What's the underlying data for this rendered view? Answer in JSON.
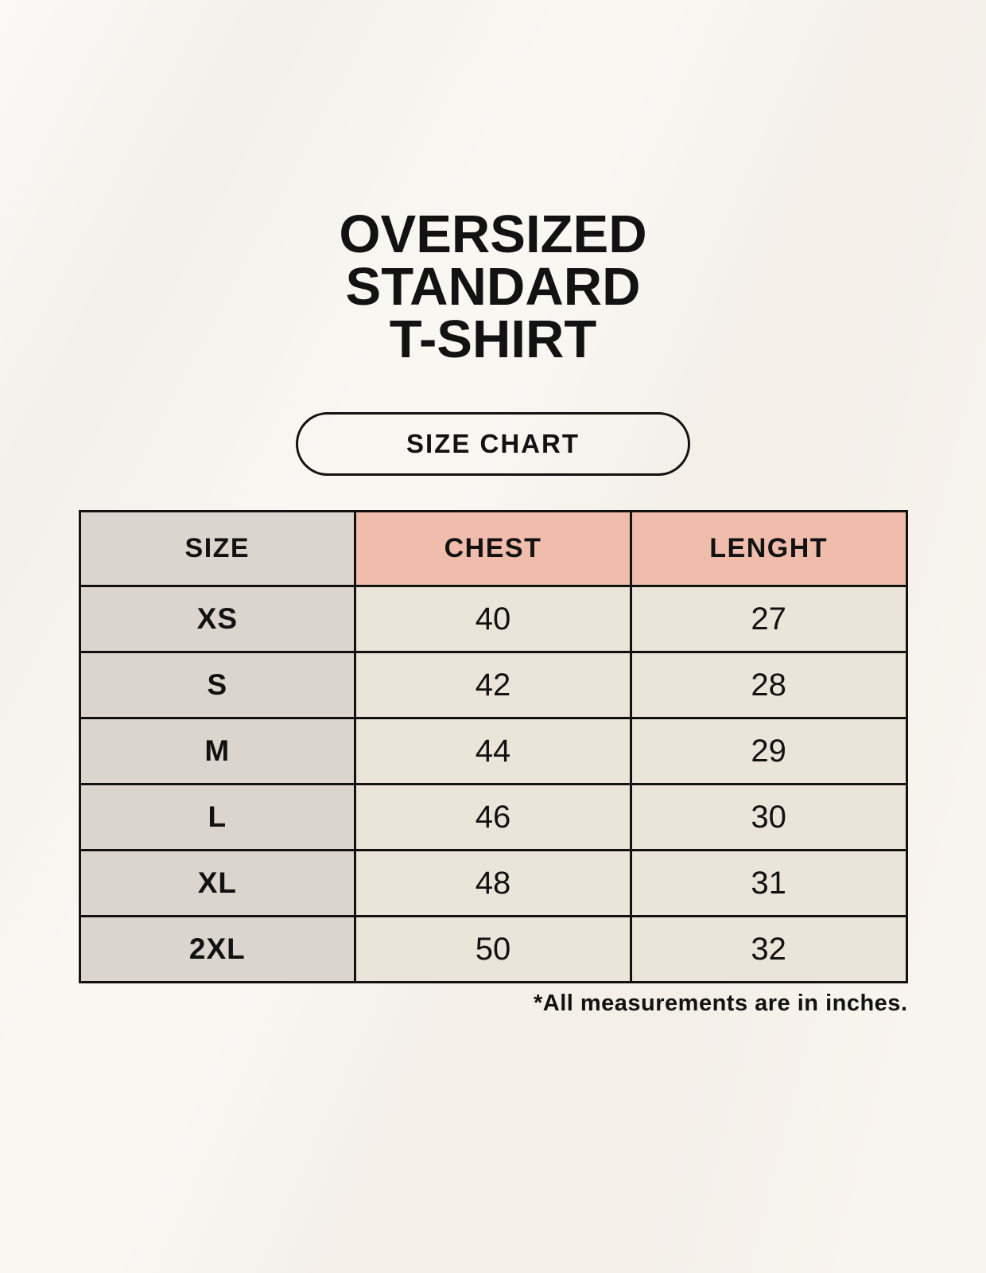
{
  "colors": {
    "page_bg": "#F8F5EE",
    "ink": "#121212",
    "accent_pink": "#F0BDAC",
    "label_bg": "#DCD5CE",
    "value_bg": "#EAE4D9"
  },
  "header": {
    "title_lines": [
      "OVERSIZED",
      "STANDARD",
      "T-SHIRT"
    ]
  },
  "size_chart_button": {
    "label": "SIZE CHART"
  },
  "chart_data": {
    "type": "table",
    "title": "OVERSIZED STANDARD T-SHIRT SIZE CHART",
    "columns": [
      "SIZE",
      "CHEST",
      "LENGHT"
    ],
    "rows": [
      {
        "size": "XS",
        "chest": "40",
        "length": "27"
      },
      {
        "size": "S",
        "chest": "42",
        "length": "28"
      },
      {
        "size": "M",
        "chest": "44",
        "length": "29"
      },
      {
        "size": "L",
        "chest": "46",
        "length": "30"
      },
      {
        "size": "XL",
        "chest": "48",
        "length": "31"
      },
      {
        "size": "2XL",
        "chest": "50",
        "length": "32"
      }
    ],
    "units_note": "*All measurements are in inches."
  }
}
